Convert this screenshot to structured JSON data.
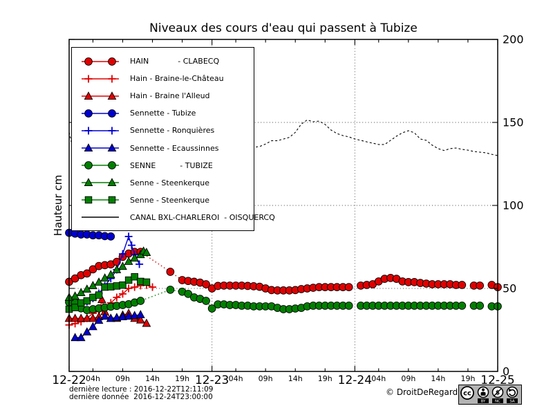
{
  "title": "Niveaux des cours d'eau qui passent à Tubize",
  "ylabel": "Hauteur cm",
  "footer": {
    "line1": "dernière lecture : 2016-12-22T12:11:09",
    "line2": "dernière donnée  2016-12-24T23:00:00",
    "copyright": "© DroitDeRegard.be"
  },
  "cc_badge": {
    "cc": "cc",
    "labels": [
      "BY",
      "NC",
      "SA"
    ]
  },
  "chart_data": {
    "type": "line",
    "title": "Niveaux des cours d'eau qui passent à Tubize",
    "xlabel": "",
    "ylabel": "Hauteur cm",
    "x_unit": "hours since 2016-12-22 00:00",
    "xlim_hours": [
      0,
      72
    ],
    "ylim": [
      0,
      200
    ],
    "yticks": [
      0,
      50,
      100,
      150,
      200
    ],
    "ygrid": [
      50,
      100,
      150
    ],
    "xgrid_hours": [
      24,
      48
    ],
    "xticks_major": [
      {
        "h": 0,
        "label": "12-22"
      },
      {
        "h": 24,
        "label": "12-23"
      },
      {
        "h": 48,
        "label": "12-24"
      },
      {
        "h": 72,
        "label": "12-25"
      }
    ],
    "xticks_minor": [
      {
        "h": 4,
        "label": "04h"
      },
      {
        "h": 9,
        "label": "09h"
      },
      {
        "h": 14,
        "label": "14h"
      },
      {
        "h": 19,
        "label": "19h"
      },
      {
        "h": 28,
        "label": "04h"
      },
      {
        "h": 33,
        "label": "09h"
      },
      {
        "h": 38,
        "label": "14h"
      },
      {
        "h": 43,
        "label": "19h"
      },
      {
        "h": 52,
        "label": "04h"
      },
      {
        "h": 57,
        "label": "09h"
      },
      {
        "h": 62,
        "label": "14h"
      },
      {
        "h": 67,
        "label": "19h"
      }
    ],
    "legend_position": "upper-left-inside",
    "series": [
      {
        "id": "hain-clabecq",
        "legend_label": "HAIN            - CLABECQ",
        "color": "#e00000",
        "marker": "circle",
        "linestyle": "dotted",
        "points": [
          [
            0,
            54
          ],
          [
            1,
            56
          ],
          [
            2,
            58
          ],
          [
            3,
            59
          ],
          [
            4,
            61.5
          ],
          [
            5,
            63.5
          ],
          [
            6,
            64
          ],
          [
            7,
            64.5
          ],
          [
            8,
            66
          ],
          [
            9,
            69
          ],
          [
            10,
            71
          ],
          [
            11,
            72
          ],
          [
            12,
            72
          ],
          [
            17,
            60
          ],
          [
            19,
            55
          ],
          [
            20,
            54.5
          ],
          [
            21,
            54
          ],
          [
            22,
            53.5
          ],
          [
            23,
            52.5
          ],
          [
            24,
            50
          ],
          [
            25,
            51.5
          ],
          [
            26,
            51.7
          ],
          [
            27,
            51.7
          ],
          [
            28,
            51.7
          ],
          [
            29,
            51.7
          ],
          [
            30,
            51.5
          ],
          [
            31,
            51.3
          ],
          [
            32,
            51
          ],
          [
            33,
            50
          ],
          [
            34,
            49
          ],
          [
            35,
            48.8
          ],
          [
            36,
            48.8
          ],
          [
            37,
            48.8
          ],
          [
            38,
            49
          ],
          [
            39,
            49.6
          ],
          [
            40,
            50
          ],
          [
            41,
            50.4
          ],
          [
            42,
            50.8
          ],
          [
            43,
            50.8
          ],
          [
            44,
            50.8
          ],
          [
            45,
            50.8
          ],
          [
            46,
            50.8
          ],
          [
            47,
            50.8
          ],
          null,
          [
            49,
            51.7
          ],
          [
            50,
            52.1
          ],
          [
            51,
            52.5
          ],
          [
            52,
            54.2
          ],
          [
            53,
            55.8
          ],
          [
            54,
            56.3
          ],
          [
            55,
            55.8
          ],
          [
            56,
            54.2
          ],
          [
            57,
            53.8
          ],
          [
            58,
            53.8
          ],
          [
            59,
            53.3
          ],
          [
            60,
            52.9
          ],
          [
            61,
            52.5
          ],
          [
            62,
            52.5
          ],
          [
            63,
            52.5
          ],
          [
            64,
            52.5
          ],
          [
            65,
            52.1
          ],
          [
            66,
            52.1
          ],
          null,
          [
            68,
            51.7
          ],
          [
            69,
            51.7
          ],
          null,
          [
            71,
            52.1
          ],
          [
            72,
            50.8
          ]
        ]
      },
      {
        "id": "hain-braine-le-chateau",
        "legend_label": "Hain - Braine-le-Château",
        "color": "#e00000",
        "marker": "plus",
        "linestyle": "solid",
        "points": [
          [
            0,
            28
          ],
          [
            1,
            28.8
          ],
          [
            2,
            30
          ],
          [
            3,
            32
          ],
          [
            4,
            35
          ],
          [
            5,
            36.3
          ],
          [
            6,
            38.3
          ],
          [
            7,
            41.3
          ],
          [
            8,
            44.6
          ],
          [
            9,
            46.7
          ],
          [
            10,
            50
          ],
          [
            11,
            50.8
          ],
          [
            12,
            51.7
          ],
          [
            13,
            52
          ],
          [
            14,
            50.8
          ]
        ]
      },
      {
        "id": "hain-braine-alleud",
        "legend_label": "Hain - Braine l'Alleud",
        "color": "#e00000",
        "marker": "triangle",
        "linestyle": "solid",
        "points": [
          [
            0,
            32
          ],
          [
            1,
            32
          ],
          [
            2,
            32
          ],
          [
            3,
            32
          ],
          [
            4,
            32
          ],
          [
            5,
            33
          ],
          [
            5.5,
            43.3
          ],
          [
            6,
            36
          ],
          [
            7,
            32
          ],
          [
            8,
            32
          ],
          [
            9,
            34
          ],
          [
            10,
            35
          ],
          [
            11,
            32
          ],
          [
            12,
            31
          ],
          [
            13,
            29
          ]
        ]
      },
      {
        "id": "sennette-tubize",
        "legend_label": "Sennette - Tubize",
        "color": "#0000d0",
        "marker": "circle",
        "linestyle": "solid",
        "points": [
          [
            0,
            83.5
          ],
          [
            1,
            83
          ],
          [
            2,
            82.5
          ],
          [
            3,
            82.5
          ],
          [
            4,
            82
          ],
          [
            5,
            82
          ],
          [
            6,
            81.5
          ],
          [
            7,
            81.3
          ]
        ]
      },
      {
        "id": "sennette-ronquieres",
        "legend_label": "Sennette - Ronquières",
        "color": "#0000d0",
        "marker": "plus",
        "linestyle": "solid",
        "points": [
          [
            3,
            42
          ],
          [
            4,
            44
          ],
          [
            5,
            47
          ],
          [
            6,
            51.7
          ],
          [
            7,
            56
          ],
          [
            8,
            61.3
          ],
          [
            9,
            70.8
          ],
          [
            10,
            81.3
          ],
          [
            10.5,
            76
          ],
          [
            11,
            70.4
          ],
          [
            11.8,
            64.6
          ]
        ]
      },
      {
        "id": "sennette-ecaussinnes",
        "legend_label": "Sennette - Ecaussinnes",
        "color": "#0000d0",
        "marker": "triangle",
        "linestyle": "solid",
        "points": [
          [
            1,
            20.4
          ],
          [
            2,
            20.4
          ],
          [
            3,
            23.8
          ],
          [
            4,
            27
          ],
          [
            5,
            30.8
          ],
          [
            6,
            33.3
          ],
          [
            7,
            32
          ],
          [
            8,
            32.5
          ],
          [
            9,
            33
          ],
          [
            10,
            33.3
          ],
          [
            11,
            33.7
          ],
          [
            12,
            34.2
          ]
        ]
      },
      {
        "id": "senne-tubize",
        "legend_label": "SENNE          - TUBIZE",
        "color": "#008000",
        "marker": "circle",
        "linestyle": "dotted",
        "points": [
          [
            0,
            41.7
          ],
          [
            1,
            41.3
          ],
          [
            2,
            38
          ],
          [
            3,
            37
          ],
          [
            4,
            37.5
          ],
          [
            5,
            38
          ],
          [
            6,
            38.5
          ],
          [
            7,
            39
          ],
          [
            8,
            39.5
          ],
          [
            9,
            40
          ],
          [
            10,
            40.5
          ],
          [
            11,
            41.5
          ],
          [
            12,
            42.5
          ],
          [
            17,
            49.2
          ],
          [
            19,
            48
          ],
          [
            20,
            46.7
          ],
          [
            21,
            44.6
          ],
          [
            22,
            43.7
          ],
          [
            23,
            42.5
          ],
          [
            24,
            37.9
          ],
          [
            25,
            40.4
          ],
          [
            26,
            40.4
          ],
          [
            27,
            40
          ],
          [
            28,
            40
          ],
          [
            29,
            39.6
          ],
          [
            30,
            39.6
          ],
          [
            31,
            39.2
          ],
          [
            32,
            39.2
          ],
          [
            33,
            39.2
          ],
          [
            34,
            39.2
          ],
          [
            35,
            38.3
          ],
          [
            36,
            37.5
          ],
          [
            37,
            37.5
          ],
          [
            38,
            37.9
          ],
          [
            39,
            38.3
          ],
          [
            40,
            39.2
          ],
          [
            41,
            39.6
          ],
          [
            42,
            39.6
          ],
          [
            43,
            39.6
          ],
          [
            44,
            39.6
          ],
          [
            45,
            39.6
          ],
          [
            46,
            39.6
          ],
          [
            47,
            39.6
          ],
          null,
          [
            49,
            39.6
          ],
          [
            50,
            39.6
          ],
          [
            51,
            39.6
          ],
          [
            52,
            39.6
          ],
          [
            53,
            39.6
          ],
          [
            54,
            39.6
          ],
          [
            55,
            39.6
          ],
          [
            56,
            39.6
          ],
          [
            57,
            39.6
          ],
          [
            58,
            39.6
          ],
          [
            59,
            39.6
          ],
          [
            60,
            39.6
          ],
          [
            61,
            39.6
          ],
          [
            62,
            39.6
          ],
          [
            63,
            39.6
          ],
          [
            64,
            39.6
          ],
          [
            65,
            39.6
          ],
          [
            66,
            39.6
          ],
          null,
          [
            68,
            39.6
          ],
          [
            69,
            39.6
          ],
          null,
          [
            71,
            39.2
          ],
          [
            72,
            39.2
          ]
        ]
      },
      {
        "id": "senne-steenkerque-amont",
        "legend_label": "Senne - Steenkerque",
        "color": "#008000",
        "marker": "triangle",
        "linestyle": "solid",
        "points": [
          [
            0,
            44.6
          ],
          [
            1,
            45.4
          ],
          [
            2,
            47.5
          ],
          [
            3,
            49.6
          ],
          [
            4,
            51.7
          ],
          [
            5,
            53.8
          ],
          [
            6,
            56.3
          ],
          [
            7,
            58.3
          ],
          [
            8,
            61.3
          ],
          [
            9,
            63.3
          ],
          [
            10,
            66.3
          ],
          [
            11,
            68.3
          ],
          [
            12,
            70.4
          ],
          [
            12.5,
            72.5
          ],
          [
            13,
            71.7
          ]
        ]
      },
      {
        "id": "senne-steenkerque-aval",
        "legend_label": "Senne - Steenkerque",
        "color": "#008000",
        "marker": "square",
        "linestyle": "solid",
        "points": [
          [
            0,
            37.5
          ],
          [
            1,
            38.5
          ],
          [
            2,
            41.3
          ],
          [
            3,
            42.5
          ],
          [
            4,
            44.6
          ],
          [
            5,
            46
          ],
          [
            6,
            50.8
          ],
          [
            7,
            51
          ],
          [
            8,
            51.5
          ],
          [
            9,
            52
          ],
          [
            10,
            55
          ],
          [
            11,
            57
          ],
          [
            12,
            54.2
          ],
          [
            13,
            53.8
          ]
        ]
      },
      {
        "id": "canal-bxl-charleroi",
        "legend_label": "CANAL BXL-CHARLEROI  - OISQUERCQ",
        "color": "#000000",
        "marker": "none",
        "linestyle": "dashed",
        "points": [
          [
            0,
            144
          ],
          [
            0.4,
            138
          ],
          [
            0.8,
            131
          ],
          [
            1.1,
            127
          ],
          null,
          [
            30,
            134.5
          ],
          [
            31,
            135
          ],
          [
            32,
            135.5
          ],
          [
            33,
            137
          ],
          [
            34,
            139
          ],
          [
            35,
            139
          ],
          [
            36,
            140
          ],
          [
            37,
            141
          ],
          [
            38,
            144
          ],
          [
            39,
            149
          ],
          [
            40,
            151.5
          ],
          [
            41,
            150.4
          ],
          [
            42,
            150.8
          ],
          [
            43,
            148.8
          ],
          [
            44,
            145.4
          ],
          [
            45,
            143.3
          ],
          [
            46,
            142.1
          ],
          [
            47,
            141.3
          ],
          [
            48,
            140
          ],
          [
            49,
            139.2
          ],
          [
            50,
            138.3
          ],
          [
            51,
            137.5
          ],
          [
            52,
            136.7
          ],
          [
            53,
            136.7
          ],
          [
            54,
            139.2
          ],
          [
            55,
            141.7
          ],
          [
            56,
            143.8
          ],
          [
            57,
            145
          ],
          [
            58,
            143.8
          ],
          [
            59,
            140
          ],
          [
            60,
            139.2
          ],
          [
            61,
            136.3
          ],
          [
            62,
            134.2
          ],
          [
            63,
            133.1
          ],
          [
            64,
            134.2
          ],
          [
            65,
            134.6
          ],
          [
            66,
            133.8
          ],
          [
            67,
            133.3
          ],
          [
            68,
            132.5
          ],
          [
            69,
            132.1
          ],
          [
            70,
            131.7
          ],
          [
            71,
            130.8
          ],
          [
            72,
            130
          ]
        ]
      }
    ]
  }
}
